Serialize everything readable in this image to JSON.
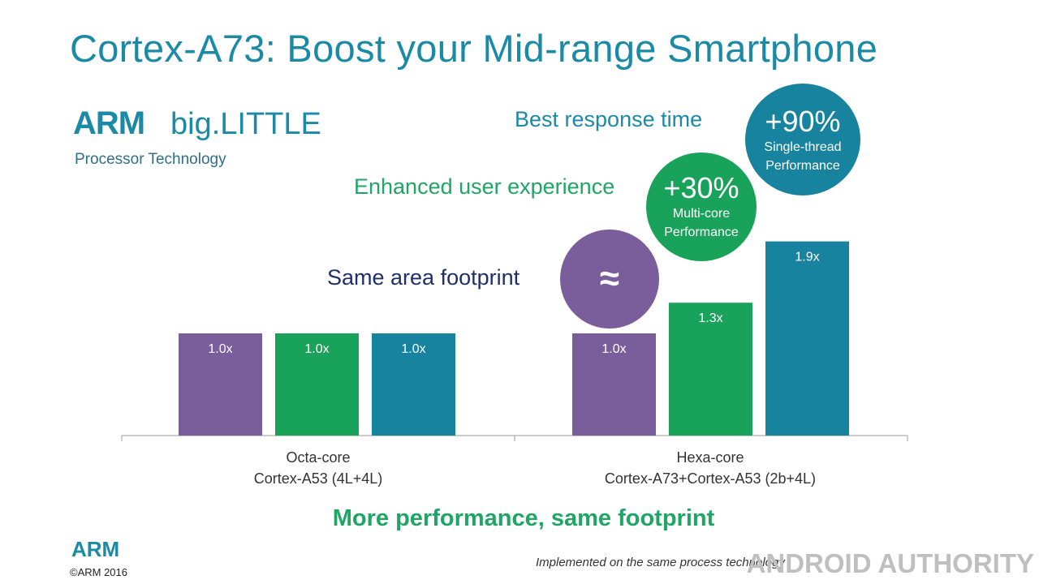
{
  "slide": {
    "title": "Cortex-A73:  Boost your Mid-range Smartphone",
    "logo": {
      "arm": "ARM",
      "big_little": "big.LITTLE",
      "subtitle": "Processor Technology"
    },
    "claims": {
      "best_response": "Best response time",
      "enhanced_ux": "Enhanced user experience",
      "same_area": "Same area footprint"
    },
    "bubbles": {
      "single_thread": {
        "value": "+90%",
        "line1": "Single-thread",
        "line2": "Performance",
        "color": "#18839f"
      },
      "multi_core": {
        "value": "+30%",
        "line1": "Multi-core",
        "line2": "Performance",
        "color": "#19a35a"
      },
      "area": {
        "symbol": "≈",
        "color": "#7a5d9b"
      }
    },
    "footline": "More performance, same footprint",
    "footer_arm": "ARM",
    "copyright": "©ARM 2016",
    "implemented_note": "Implemented on the same process technology",
    "watermark": "ANDROID AUTHORITY"
  },
  "chart_data": {
    "type": "bar",
    "title": "",
    "xlabel": "",
    "ylabel": "",
    "ylim": [
      0,
      2.0
    ],
    "grid": false,
    "categories": [
      {
        "line1": "Octa-core",
        "line2": "Cortex-A53 (4L+4L)"
      },
      {
        "line1": "Hexa-core",
        "line2": "Cortex-A73+Cortex-A53 (2b+4L)"
      }
    ],
    "series": [
      {
        "name": "Area footprint",
        "color": "#7a5d9b",
        "values": [
          1.0,
          1.0
        ],
        "labels": [
          "1.0x",
          "1.0x"
        ]
      },
      {
        "name": "Multi-core Performance",
        "color": "#19a35a",
        "values": [
          1.0,
          1.3
        ],
        "labels": [
          "1.0x",
          "1.3x"
        ]
      },
      {
        "name": "Single-thread Performance",
        "color": "#18839f",
        "values": [
          1.0,
          1.9
        ],
        "labels": [
          "1.0x",
          "1.9x"
        ]
      }
    ]
  }
}
